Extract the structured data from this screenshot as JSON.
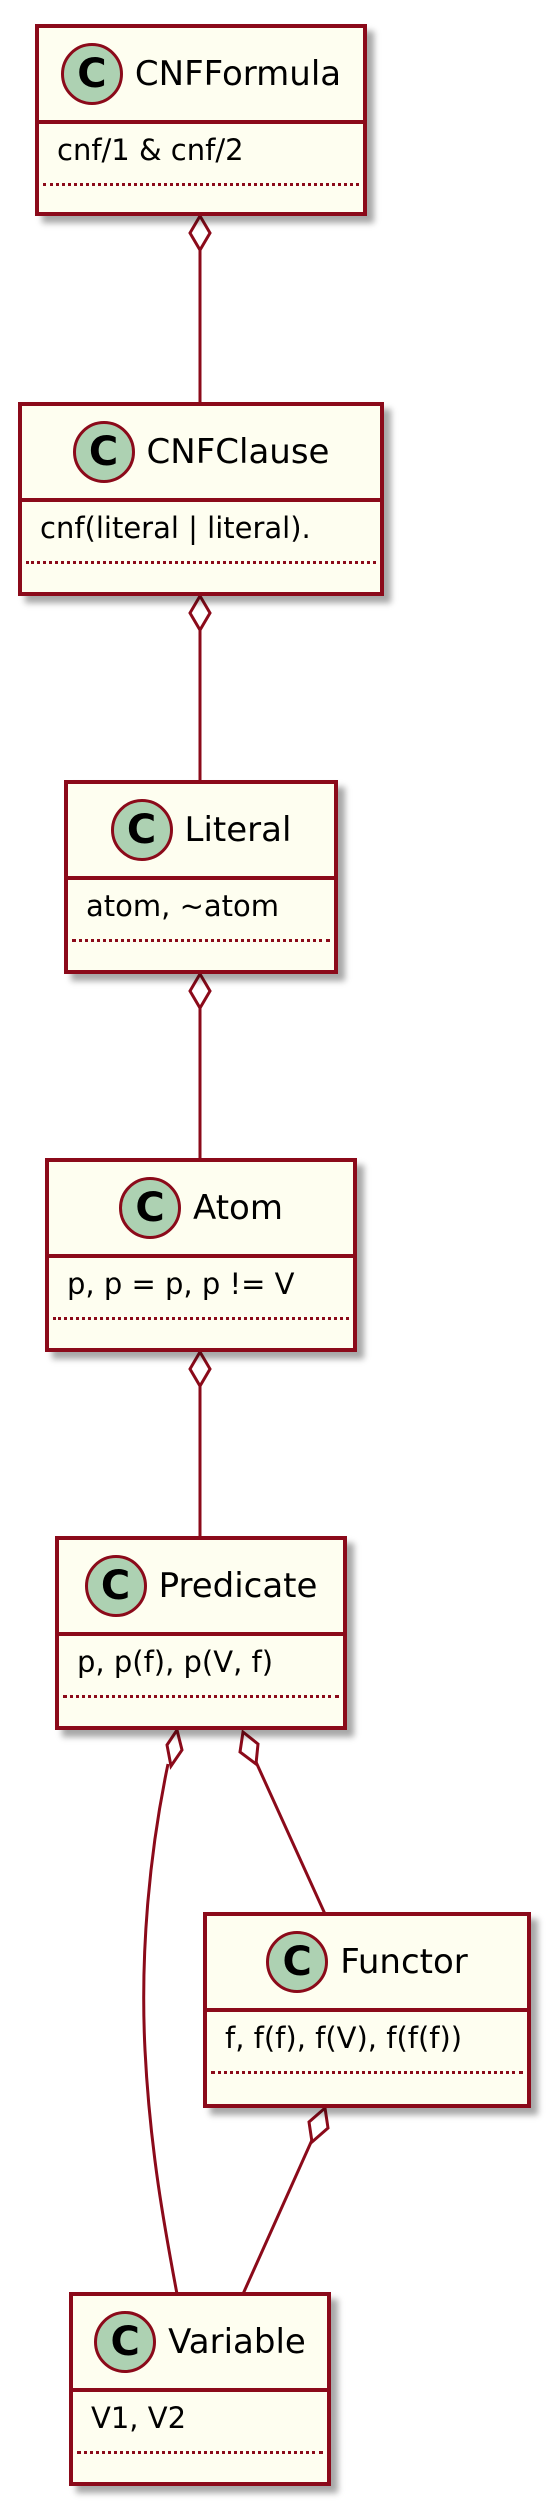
{
  "classes": [
    {
      "id": "cnfformula",
      "name": "CNFFormula",
      "field": "cnf/1 & cnf/2",
      "badge": "C"
    },
    {
      "id": "cnfclause",
      "name": "CNFClause",
      "field": "cnf(literal | literal).",
      "badge": "C"
    },
    {
      "id": "literal",
      "name": "Literal",
      "field": "atom, ~atom",
      "badge": "C"
    },
    {
      "id": "atom",
      "name": "Atom",
      "field": "p, p = p, p != V",
      "badge": "C"
    },
    {
      "id": "predicate",
      "name": "Predicate",
      "field": "p, p(f), p(V, f)",
      "badge": "C"
    },
    {
      "id": "functor",
      "name": "Functor",
      "field": "f, f(f), f(V), f(f(f))",
      "badge": "C"
    },
    {
      "id": "variable",
      "name": "Variable",
      "field": "V1, V2",
      "badge": "C"
    }
  ],
  "relations": [
    {
      "from": "cnfformula",
      "to": "cnfclause",
      "type": "aggregation"
    },
    {
      "from": "cnfclause",
      "to": "literal",
      "type": "aggregation"
    },
    {
      "from": "literal",
      "to": "atom",
      "type": "aggregation"
    },
    {
      "from": "atom",
      "to": "predicate",
      "type": "aggregation"
    },
    {
      "from": "predicate",
      "to": "variable",
      "type": "aggregation"
    },
    {
      "from": "predicate",
      "to": "functor",
      "type": "aggregation"
    },
    {
      "from": "functor",
      "to": "variable",
      "type": "aggregation"
    }
  ],
  "colors": {
    "border": "#8B0A1A",
    "box_fill": "#FEFEF0",
    "badge_fill": "#ADD1B2",
    "diamond_fill": "#FFFFFF"
  }
}
